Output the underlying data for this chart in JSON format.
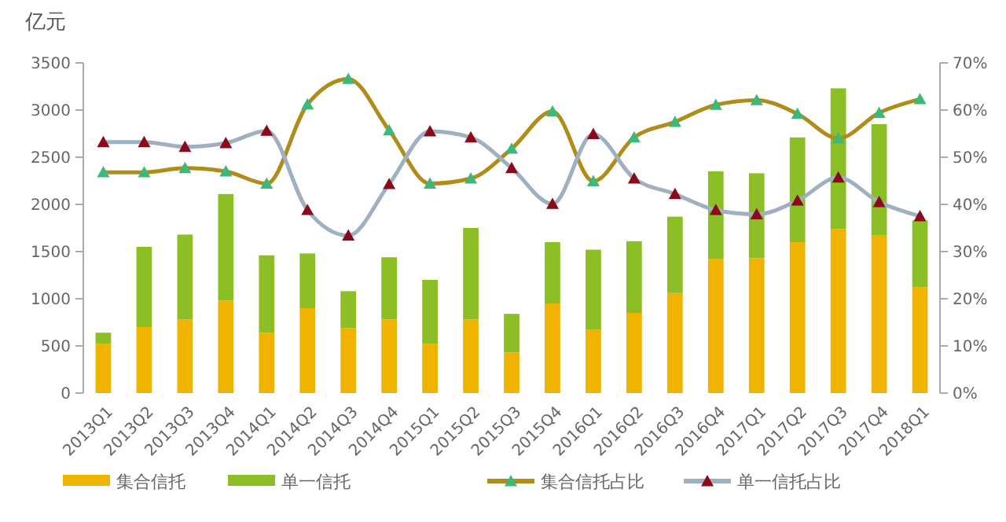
{
  "chart_data": {
    "type": "bar",
    "ylabel": "亿元",
    "stacked": true,
    "legend": "bottom",
    "grid": false,
    "marker": "triangle",
    "line_style": "solid",
    "categories": [
      "2013Q1",
      "2013Q2",
      "2013Q3",
      "2013Q4",
      "2014Q1",
      "2014Q2",
      "2014Q3",
      "2014Q4",
      "2015Q1",
      "2015Q2",
      "2015Q3",
      "2015Q4",
      "2016Q1",
      "2016Q2",
      "2016Q3",
      "2016Q4",
      "2017Q1",
      "2017Q2",
      "2017Q3",
      "2017Q4",
      "2018Q1"
    ],
    "ylim": [
      0,
      3500
    ],
    "yticks": [
      0,
      500,
      1000,
      1500,
      2000,
      2500,
      3000,
      3500
    ],
    "y2lim": [
      0,
      70
    ],
    "y2ticks": [
      {
        "value": 0,
        "label": "0%"
      },
      {
        "value": 10,
        "label": "10%"
      },
      {
        "value": 20,
        "label": "20%"
      },
      {
        "value": 30,
        "label": "30%"
      },
      {
        "value": 40,
        "label": "40%"
      },
      {
        "value": 50,
        "label": "50%"
      },
      {
        "value": 60,
        "label": "60%"
      },
      {
        "value": 70,
        "label": "70%"
      }
    ],
    "series": [
      {
        "name": "集合信托",
        "color": "#f0b400",
        "values": [
          520,
          700,
          780,
          980,
          640,
          900,
          690,
          780,
          520,
          780,
          430,
          950,
          670,
          850,
          1060,
          1420,
          1430,
          1600,
          1740,
          1670,
          1120
        ]
      },
      {
        "name": "单一信托",
        "color": "#8cbf26",
        "values": [
          120,
          850,
          900,
          1130,
          820,
          580,
          390,
          660,
          680,
          970,
          410,
          650,
          850,
          760,
          810,
          930,
          900,
          1110,
          1490,
          1180,
          710
        ]
      },
      {
        "name": "集合信托占比",
        "type": "line",
        "axis": "y2",
        "color": "#b08d1a",
        "values": [
          46.8,
          46.8,
          47.7,
          47.0,
          44.4,
          61.2,
          66.6,
          55.7,
          44.4,
          45.5,
          51.8,
          59.7,
          44.9,
          54.2,
          57.5,
          61.1,
          62.1,
          59.2,
          54.0,
          59.4,
          62.3
        ]
      },
      {
        "name": "单一信托占比",
        "type": "line",
        "axis": "y2",
        "color": "#9fb0c0",
        "values": [
          53.2,
          53.2,
          52.2,
          53.0,
          55.6,
          38.8,
          33.4,
          44.3,
          55.5,
          54.2,
          47.7,
          40.1,
          54.9,
          45.5,
          42.2,
          38.8,
          37.9,
          40.8,
          45.7,
          40.5,
          37.5
        ]
      }
    ]
  }
}
